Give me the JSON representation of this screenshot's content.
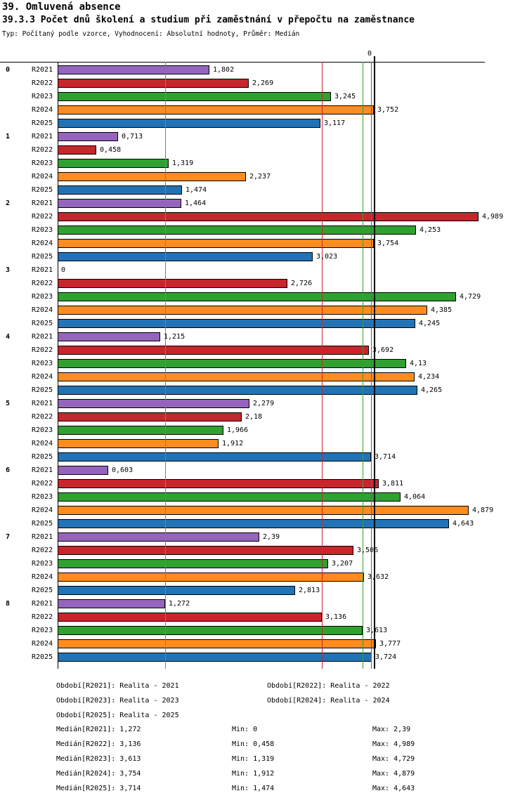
{
  "header": {
    "title": "39. Omluvená absence",
    "subtitle": "39.3.3 Počet dnů školení a studium při zaměstnání v přepočtu na zaměstnance",
    "meta": "Typ: Počítaný podle vzorce, Vyhodnocení: Absolutní hodnoty, Průměr: Medián"
  },
  "chart_data": {
    "type": "bar",
    "orientation": "horizontal",
    "value_axis_top_label": "0",
    "xlim": [
      0,
      5.57
    ],
    "grid": "median-lines-per-series",
    "legend_position": "bottom",
    "series": [
      "R2021",
      "R2022",
      "R2023",
      "R2024",
      "R2025"
    ],
    "colors": {
      "R2021": "#9565BD",
      "R2022": "#C9252C",
      "R2023": "#30A130",
      "R2024": "#FF8C1F",
      "R2025": "#2273B5"
    },
    "groups": [
      {
        "label": "0",
        "values": [
          1.802,
          2.269,
          3.245,
          3.752,
          3.117
        ],
        "value_labels": [
          "1,802",
          "2,269",
          "3,245",
          "3,752",
          "3,117"
        ]
      },
      {
        "label": "1",
        "values": [
          0.713,
          0.458,
          1.319,
          2.237,
          1.474
        ],
        "value_labels": [
          "0,713",
          "0,458",
          "1,319",
          "2,237",
          "1,474"
        ]
      },
      {
        "label": "2",
        "values": [
          1.464,
          4.989,
          4.253,
          3.754,
          3.023
        ],
        "value_labels": [
          "1,464",
          "4,989",
          "4,253",
          "3,754",
          "3,023"
        ]
      },
      {
        "label": "3",
        "values": [
          0,
          2.726,
          4.729,
          4.385,
          4.245
        ],
        "value_labels": [
          "0",
          "2,726",
          "4,729",
          "4,385",
          "4,245"
        ]
      },
      {
        "label": "4",
        "values": [
          1.215,
          3.692,
          4.13,
          4.234,
          4.265
        ],
        "value_labels": [
          "1,215",
          "3,692",
          "4,13",
          "4,234",
          "4,265"
        ]
      },
      {
        "label": "5",
        "values": [
          2.279,
          2.18,
          1.966,
          1.912,
          3.714
        ],
        "value_labels": [
          "2,279",
          "2,18",
          "1,966",
          "1,912",
          "3,714"
        ]
      },
      {
        "label": "6",
        "values": [
          0.603,
          3.811,
          4.064,
          4.879,
          4.643
        ],
        "value_labels": [
          "0,603",
          "3,811",
          "4,064",
          "4,879",
          "4,643"
        ]
      },
      {
        "label": "7",
        "values": [
          2.39,
          3.506,
          3.207,
          3.632,
          2.813
        ],
        "value_labels": [
          "2,39",
          "3,506",
          "3,207",
          "3,632",
          "2,813"
        ]
      },
      {
        "label": "8",
        "values": [
          1.272,
          3.136,
          3.613,
          3.777,
          3.724
        ],
        "value_labels": [
          "1,272",
          "3,136",
          "3,613",
          "3,777",
          "3,724"
        ]
      }
    ],
    "medians": {
      "R2021": 1.272,
      "R2022": 3.136,
      "R2023": 3.613,
      "R2024": 3.754,
      "R2025": 3.714
    }
  },
  "legend": {
    "items": [
      "Období[R2021]: Realita - 2021",
      "Období[R2022]: Realita - 2022",
      "Období[R2023]: Realita - 2023",
      "Období[R2024]: Realita - 2024",
      "Období[R2025]: Realita - 2025"
    ]
  },
  "stats": {
    "rows": [
      {
        "median": "Medián[R2021]: 1,272",
        "min": "Min: 0",
        "max": "Max: 2,39"
      },
      {
        "median": "Medián[R2022]: 3,136",
        "min": "Min: 0,458",
        "max": "Max: 4,989"
      },
      {
        "median": "Medián[R2023]: 3,613",
        "min": "Min: 1,319",
        "max": "Max: 4,729"
      },
      {
        "median": "Medián[R2024]: 3,754",
        "min": "Min: 1,912",
        "max": "Max: 4,879"
      },
      {
        "median": "Medián[R2025]: 3,714",
        "min": "Min: 1,474",
        "max": "Max: 4,643"
      }
    ]
  }
}
